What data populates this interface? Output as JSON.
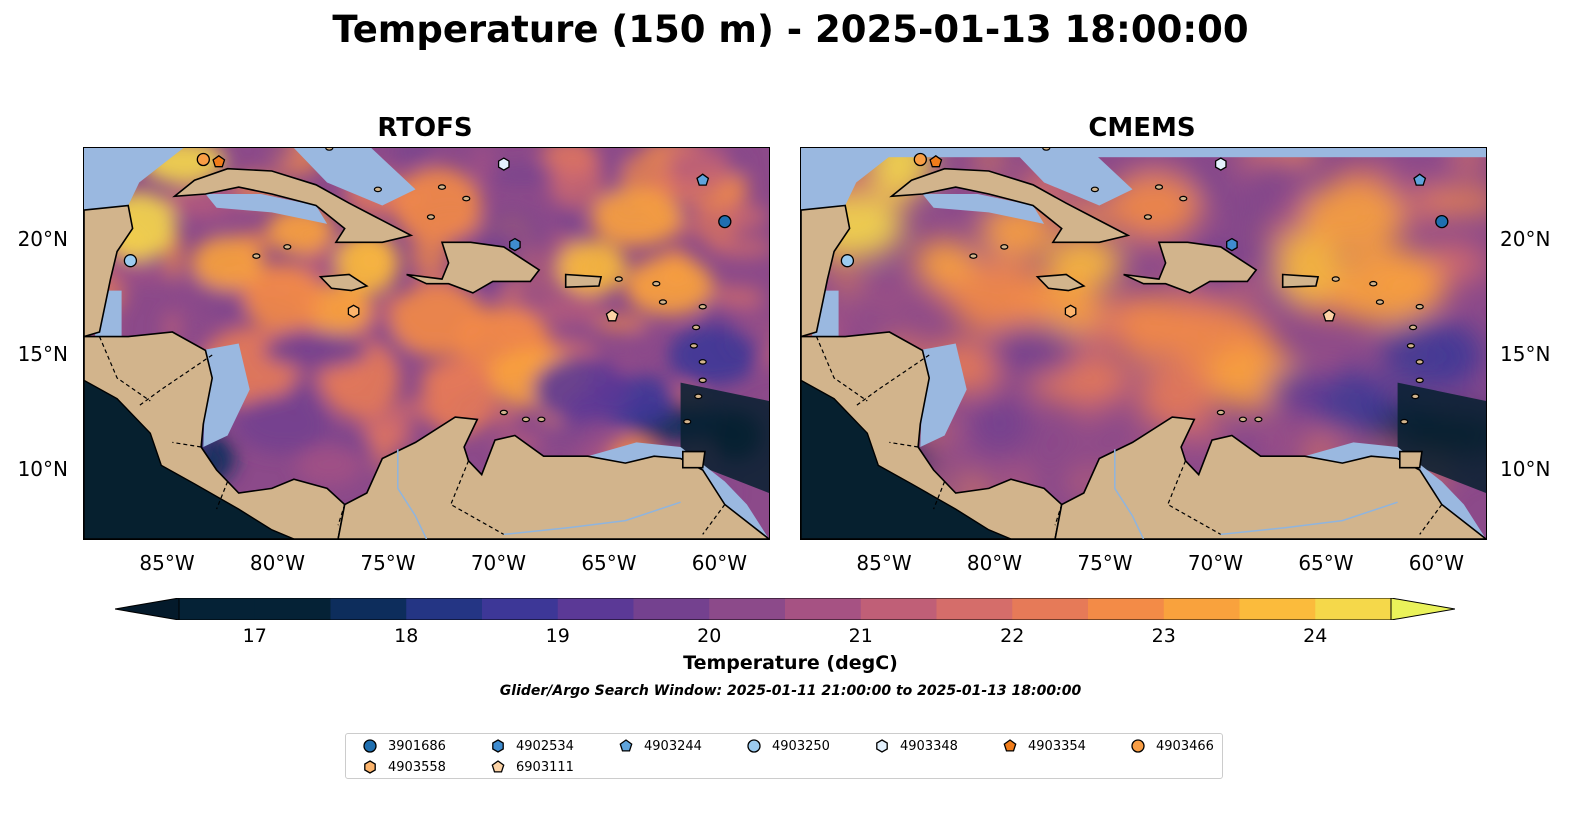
{
  "figure": {
    "title": "Temperature (150 m) - 2025-01-13 18:00:00",
    "panels": [
      "RTOFS",
      "CMEMS"
    ],
    "lat_ticks": [
      "20°N",
      "15°N",
      "10°N"
    ],
    "lon_ticks": [
      "85°W",
      "80°W",
      "75°W",
      "70°W",
      "65°W",
      "60°W"
    ],
    "colorbar_ticks": [
      "17",
      "18",
      "19",
      "20",
      "21",
      "22",
      "23",
      "24"
    ],
    "colorbar_label": "Temperature (degC)",
    "search_window": "Glider/Argo Search Window: 2025-01-11 21:00:00 to 2025-01-13 18:00:00",
    "colors": {
      "land": "#d2b48c",
      "shelf": "#9ab8e0",
      "deep_cold": "#06202f",
      "cmap": [
        "#052236",
        "#0d2d5c",
        "#243584",
        "#3d3797",
        "#5b3996",
        "#74418f",
        "#8c4a8a",
        "#a65283",
        "#c05f77",
        "#d56d6a",
        "#e67a58",
        "#f38b47",
        "#f9a23d",
        "#fbbb3c",
        "#f5d84a"
      ]
    }
  },
  "chart_data": {
    "type": "heatmap",
    "variable": "Temperature",
    "depth": "150 m",
    "units": "degC",
    "time": "2025-01-13 18:00:00",
    "panels": [
      "RTOFS",
      "CMEMS"
    ],
    "color_range": [
      16.5,
      24.5
    ],
    "color_levels_step": 0.5,
    "extend": "both",
    "lon_range": [
      -89,
      -58
    ],
    "lat_range": [
      7,
      24
    ],
    "floats": [
      {
        "id": "3901686",
        "marker": "circle",
        "color": "#1f6fb0",
        "lon": -60.0,
        "lat": 20.8
      },
      {
        "id": "4902534",
        "marker": "hexagon",
        "color": "#3f8ccf",
        "lon": -69.5,
        "lat": 19.8
      },
      {
        "id": "4903244",
        "marker": "pentagon",
        "color": "#5fa4dc",
        "lon": -61.0,
        "lat": 22.6
      },
      {
        "id": "4903250",
        "marker": "circle",
        "color": "#9ccbef",
        "lon": -86.9,
        "lat": 19.1
      },
      {
        "id": "4903348",
        "marker": "hexagon",
        "color": "#e3f1fd",
        "lon": -70.0,
        "lat": 23.3
      },
      {
        "id": "4903354",
        "marker": "pentagon",
        "color": "#f07c1a",
        "lon": -82.9,
        "lat": 23.4
      },
      {
        "id": "4903466",
        "marker": "circle",
        "color": "#f99e45",
        "lon": -83.6,
        "lat": 23.5
      },
      {
        "id": "4903558",
        "marker": "hexagon",
        "color": "#fcb46c",
        "lon": -76.8,
        "lat": 16.9
      },
      {
        "id": "6903111",
        "marker": "pentagon",
        "color": "#fcd3a6",
        "lon": -65.1,
        "lat": 16.7
      }
    ]
  }
}
